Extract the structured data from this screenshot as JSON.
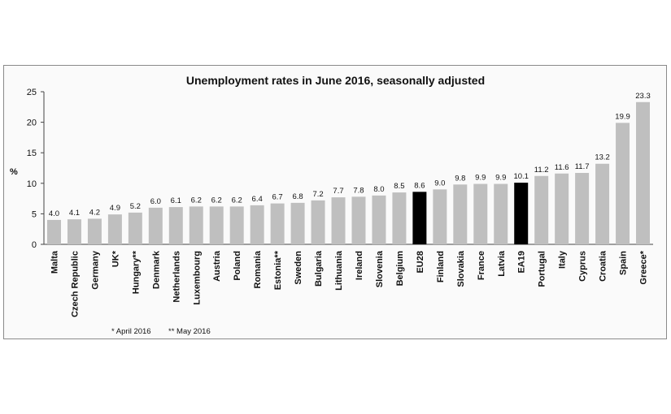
{
  "chart_data": {
    "type": "bar",
    "title": "Unemployment rates in June 2016, seasonally adjusted",
    "ylabel": "%",
    "ylim": [
      0,
      25
    ],
    "yticks": [
      0,
      5,
      10,
      15,
      20,
      25
    ],
    "grid": false,
    "categories": [
      "Malta",
      "Czech Republic",
      "Germany",
      "UK*",
      "Hungary**",
      "Denmark",
      "Netherlands",
      "Luxembourg",
      "Austria",
      "Poland",
      "Romania",
      "Estonia**",
      "Sweden",
      "Bulgaria",
      "Lithuania",
      "Ireland",
      "Slovenia",
      "Belgium",
      "EU28",
      "Finland",
      "Slovakia",
      "France",
      "Latvia",
      "EA19",
      "Portugal",
      "Italy",
      "Cyprus",
      "Croatia",
      "Spain",
      "Greece*"
    ],
    "values": [
      4.0,
      4.1,
      4.2,
      4.9,
      5.2,
      6.0,
      6.1,
      6.2,
      6.2,
      6.2,
      6.4,
      6.7,
      6.8,
      7.2,
      7.7,
      7.8,
      8.0,
      8.5,
      8.6,
      9.0,
      9.8,
      9.9,
      9.9,
      10.1,
      11.2,
      11.6,
      11.7,
      13.2,
      19.9,
      23.3
    ],
    "value_labels": [
      "4.0",
      "4.1",
      "4.2",
      "4.9",
      "5.2",
      "6.0",
      "6.1",
      "6.2",
      "6.2",
      "6.2",
      "6.4",
      "6.7",
      "6.8",
      "7.2",
      "7.7",
      "7.8",
      "8.0",
      "8.5",
      "8.6",
      "9.0",
      "9.8",
      "9.9",
      "9.9",
      "10.1",
      "11.2",
      "11.6",
      "11.7",
      "13.2",
      "19.9",
      "23.3"
    ],
    "highlighted": [
      "EU28",
      "EA19"
    ],
    "colors": {
      "bar": "#bfbfbf",
      "highlight": "#000000"
    },
    "footnotes": [
      "* April 2016",
      "** May 2016"
    ]
  }
}
